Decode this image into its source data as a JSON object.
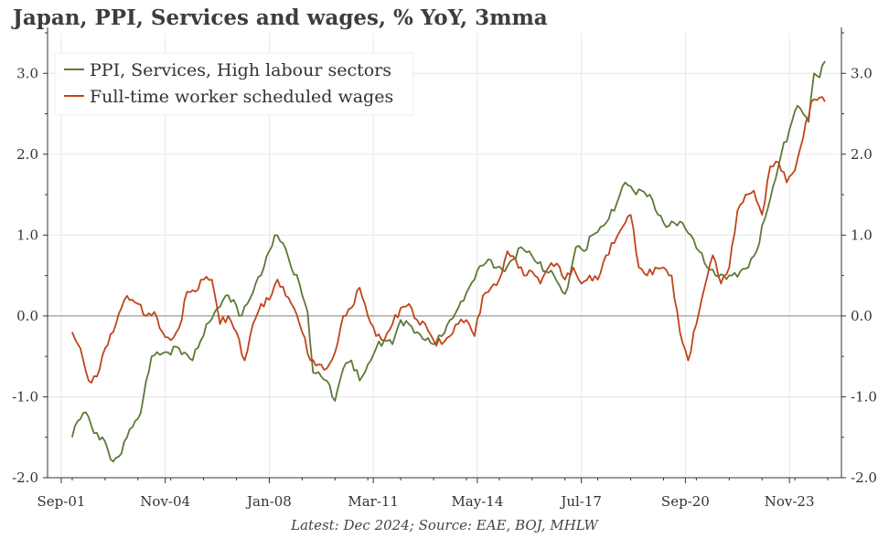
{
  "title": "Japan, PPI, Services and wages, % YoY, 3mma",
  "source_note": "Latest: Dec 2024; Source: EAE, BOJ, MHLW",
  "colors": {
    "ppi": "#5b7a37",
    "wages": "#c0441a",
    "zero_line": "#aaaaaa",
    "grid": "#e6e6e6",
    "axis": "#333333"
  },
  "chart_data": {
    "type": "line",
    "title": "Japan, PPI, Services and wages, % YoY, 3mma",
    "x_tick_labels": [
      "Sep-01",
      "Nov-04",
      "Jan-08",
      "Mar-11",
      "May-14",
      "Jul-17",
      "Sep-20",
      "Nov-23"
    ],
    "x_ticks": [
      "2001-09",
      "2004-11",
      "2008-01",
      "2011-03",
      "2014-05",
      "2017-07",
      "2020-09",
      "2023-11"
    ],
    "xlim": [
      "2001-04",
      "2025-06"
    ],
    "ylim": [
      -2.0,
      3.5
    ],
    "y_ticks": [
      -2.0,
      -1.0,
      0.0,
      1.0,
      2.0,
      3.0
    ],
    "y_tick_labels": [
      "-2.0",
      "-1.0",
      "0.0",
      "1.0",
      "2.0",
      "3.0"
    ],
    "dual_y_axis_labels": true,
    "grid": true,
    "legend_position": "top-left",
    "series": [
      {
        "name": "PPI, Services, High labour sectors",
        "color": "#5b7a37",
        "points": [
          [
            "2002-01",
            -1.5
          ],
          [
            "2002-03",
            -1.3
          ],
          [
            "2002-05",
            -1.2
          ],
          [
            "2002-07",
            -1.25
          ],
          [
            "2002-09",
            -1.45
          ],
          [
            "2002-12",
            -1.5
          ],
          [
            "2003-02",
            -1.65
          ],
          [
            "2003-04",
            -1.8
          ],
          [
            "2003-07",
            -1.7
          ],
          [
            "2003-10",
            -1.4
          ],
          [
            "2003-12",
            -1.3
          ],
          [
            "2004-02",
            -1.2
          ],
          [
            "2004-04",
            -0.8
          ],
          [
            "2004-06",
            -0.5
          ],
          [
            "2004-09",
            -0.48
          ],
          [
            "2004-12",
            -0.45
          ],
          [
            "2005-03",
            -0.38
          ],
          [
            "2005-06",
            -0.45
          ],
          [
            "2005-09",
            -0.55
          ],
          [
            "2005-12",
            -0.3
          ],
          [
            "2006-03",
            -0.08
          ],
          [
            "2006-06",
            0.1
          ],
          [
            "2006-09",
            0.25
          ],
          [
            "2006-12",
            0.2
          ],
          [
            "2007-02",
            0.0
          ],
          [
            "2007-05",
            0.15
          ],
          [
            "2007-08",
            0.4
          ],
          [
            "2007-11",
            0.6
          ],
          [
            "2008-03",
            1.0
          ],
          [
            "2008-06",
            0.9
          ],
          [
            "2008-09",
            0.6
          ],
          [
            "2008-12",
            0.4
          ],
          [
            "2009-03",
            0.05
          ],
          [
            "2009-05",
            -0.7
          ],
          [
            "2009-08",
            -0.75
          ],
          [
            "2009-11",
            -0.85
          ],
          [
            "2010-01",
            -1.05
          ],
          [
            "2010-04",
            -0.65
          ],
          [
            "2010-07",
            -0.55
          ],
          [
            "2010-10",
            -0.8
          ],
          [
            "2011-01",
            -0.6
          ],
          [
            "2011-04",
            -0.4
          ],
          [
            "2011-07",
            -0.3
          ],
          [
            "2011-10",
            -0.35
          ],
          [
            "2012-01",
            -0.05
          ],
          [
            "2012-04",
            -0.1
          ],
          [
            "2012-07",
            -0.2
          ],
          [
            "2012-10",
            -0.3
          ],
          [
            "2013-01",
            -0.35
          ],
          [
            "2013-04",
            -0.25
          ],
          [
            "2013-07",
            -0.05
          ],
          [
            "2013-10",
            0.1
          ],
          [
            "2014-02",
            0.35
          ],
          [
            "2014-06",
            0.62
          ],
          [
            "2014-09",
            0.7
          ],
          [
            "2014-12",
            0.6
          ],
          [
            "2015-03",
            0.55
          ],
          [
            "2015-06",
            0.7
          ],
          [
            "2015-09",
            0.85
          ],
          [
            "2015-12",
            0.8
          ],
          [
            "2016-03",
            0.65
          ],
          [
            "2016-06",
            0.55
          ],
          [
            "2016-09",
            0.5
          ],
          [
            "2016-12",
            0.3
          ],
          [
            "2017-02",
            0.35
          ],
          [
            "2017-05",
            0.85
          ],
          [
            "2017-08",
            0.8
          ],
          [
            "2017-11",
            1.0
          ],
          [
            "2018-02",
            1.1
          ],
          [
            "2018-05",
            1.2
          ],
          [
            "2018-08",
            1.4
          ],
          [
            "2018-11",
            1.65
          ],
          [
            "2019-02",
            1.55
          ],
          [
            "2019-05",
            1.55
          ],
          [
            "2019-08",
            1.5
          ],
          [
            "2019-11",
            1.25
          ],
          [
            "2020-02",
            1.1
          ],
          [
            "2020-05",
            1.15
          ],
          [
            "2020-08",
            1.15
          ],
          [
            "2020-11",
            1.0
          ],
          [
            "2021-02",
            0.8
          ],
          [
            "2021-05",
            0.6
          ],
          [
            "2021-08",
            0.5
          ],
          [
            "2021-11",
            0.5
          ],
          [
            "2022-02",
            0.5
          ],
          [
            "2022-05",
            0.55
          ],
          [
            "2022-08",
            0.6
          ],
          [
            "2022-11",
            0.8
          ],
          [
            "2023-02",
            1.2
          ],
          [
            "2023-05",
            1.6
          ],
          [
            "2023-08",
            2.0
          ],
          [
            "2023-11",
            2.3
          ],
          [
            "2024-02",
            2.6
          ],
          [
            "2024-04",
            2.5
          ],
          [
            "2024-06",
            2.4
          ],
          [
            "2024-08",
            3.0
          ],
          [
            "2024-10",
            2.95
          ],
          [
            "2024-12",
            3.15
          ]
        ]
      },
      {
        "name": "Full-time worker scheduled wages",
        "color": "#c0441a",
        "points": [
          [
            "2002-01",
            -0.2
          ],
          [
            "2002-04",
            -0.4
          ],
          [
            "2002-07",
            -0.8
          ],
          [
            "2002-10",
            -0.75
          ],
          [
            "2003-01",
            -0.4
          ],
          [
            "2003-04",
            -0.2
          ],
          [
            "2003-07",
            0.1
          ],
          [
            "2003-09",
            0.25
          ],
          [
            "2003-11",
            0.2
          ],
          [
            "2004-01",
            0.15
          ],
          [
            "2004-04",
            0.0
          ],
          [
            "2004-07",
            0.05
          ],
          [
            "2004-10",
            -0.2
          ],
          [
            "2005-01",
            -0.3
          ],
          [
            "2005-04",
            -0.15
          ],
          [
            "2005-07",
            0.3
          ],
          [
            "2005-10",
            0.3
          ],
          [
            "2006-01",
            0.45
          ],
          [
            "2006-04",
            0.45
          ],
          [
            "2006-07",
            -0.1
          ],
          [
            "2006-10",
            0.0
          ],
          [
            "2007-01",
            -0.2
          ],
          [
            "2007-04",
            -0.55
          ],
          [
            "2007-07",
            -0.1
          ],
          [
            "2007-10",
            0.15
          ],
          [
            "2008-01",
            0.2
          ],
          [
            "2008-04",
            0.45
          ],
          [
            "2008-07",
            0.25
          ],
          [
            "2008-10",
            0.1
          ],
          [
            "2009-01",
            -0.2
          ],
          [
            "2009-04",
            -0.55
          ],
          [
            "2009-07",
            -0.6
          ],
          [
            "2009-10",
            -0.65
          ],
          [
            "2010-01",
            -0.45
          ],
          [
            "2010-04",
            0.0
          ],
          [
            "2010-07",
            0.1
          ],
          [
            "2010-10",
            0.35
          ],
          [
            "2011-01",
            0.0
          ],
          [
            "2011-04",
            -0.25
          ],
          [
            "2011-07",
            -0.3
          ],
          [
            "2011-10",
            -0.1
          ],
          [
            "2012-01",
            0.1
          ],
          [
            "2012-04",
            0.15
          ],
          [
            "2012-07",
            -0.05
          ],
          [
            "2012-10",
            -0.1
          ],
          [
            "2013-01",
            -0.3
          ],
          [
            "2013-04",
            -0.35
          ],
          [
            "2013-07",
            -0.25
          ],
          [
            "2013-10",
            -0.1
          ],
          [
            "2014-01",
            -0.05
          ],
          [
            "2014-04",
            -0.25
          ],
          [
            "2014-07",
            0.25
          ],
          [
            "2014-10",
            0.35
          ],
          [
            "2015-01",
            0.45
          ],
          [
            "2015-04",
            0.8
          ],
          [
            "2015-07",
            0.7
          ],
          [
            "2015-10",
            0.5
          ],
          [
            "2016-01",
            0.55
          ],
          [
            "2016-04",
            0.4
          ],
          [
            "2016-07",
            0.6
          ],
          [
            "2016-10",
            0.65
          ],
          [
            "2017-01",
            0.45
          ],
          [
            "2017-04",
            0.6
          ],
          [
            "2017-07",
            0.4
          ],
          [
            "2017-10",
            0.5
          ],
          [
            "2018-01",
            0.45
          ],
          [
            "2018-04",
            0.75
          ],
          [
            "2018-07",
            0.9
          ],
          [
            "2018-10",
            1.1
          ],
          [
            "2019-01",
            1.25
          ],
          [
            "2019-04",
            0.6
          ],
          [
            "2019-07",
            0.5
          ],
          [
            "2019-10",
            0.6
          ],
          [
            "2020-01",
            0.6
          ],
          [
            "2020-04",
            0.5
          ],
          [
            "2020-07",
            -0.2
          ],
          [
            "2020-10",
            -0.55
          ],
          [
            "2021-01",
            -0.1
          ],
          [
            "2021-04",
            0.35
          ],
          [
            "2021-07",
            0.75
          ],
          [
            "2021-10",
            0.4
          ],
          [
            "2022-01",
            0.6
          ],
          [
            "2022-04",
            1.3
          ],
          [
            "2022-07",
            1.5
          ],
          [
            "2022-10",
            1.55
          ],
          [
            "2023-01",
            1.25
          ],
          [
            "2023-04",
            1.85
          ],
          [
            "2023-07",
            1.9
          ],
          [
            "2023-10",
            1.65
          ],
          [
            "2024-01",
            1.8
          ],
          [
            "2024-04",
            2.2
          ],
          [
            "2024-07",
            2.65
          ],
          [
            "2024-10",
            2.7
          ],
          [
            "2024-12",
            2.65
          ]
        ]
      }
    ]
  }
}
